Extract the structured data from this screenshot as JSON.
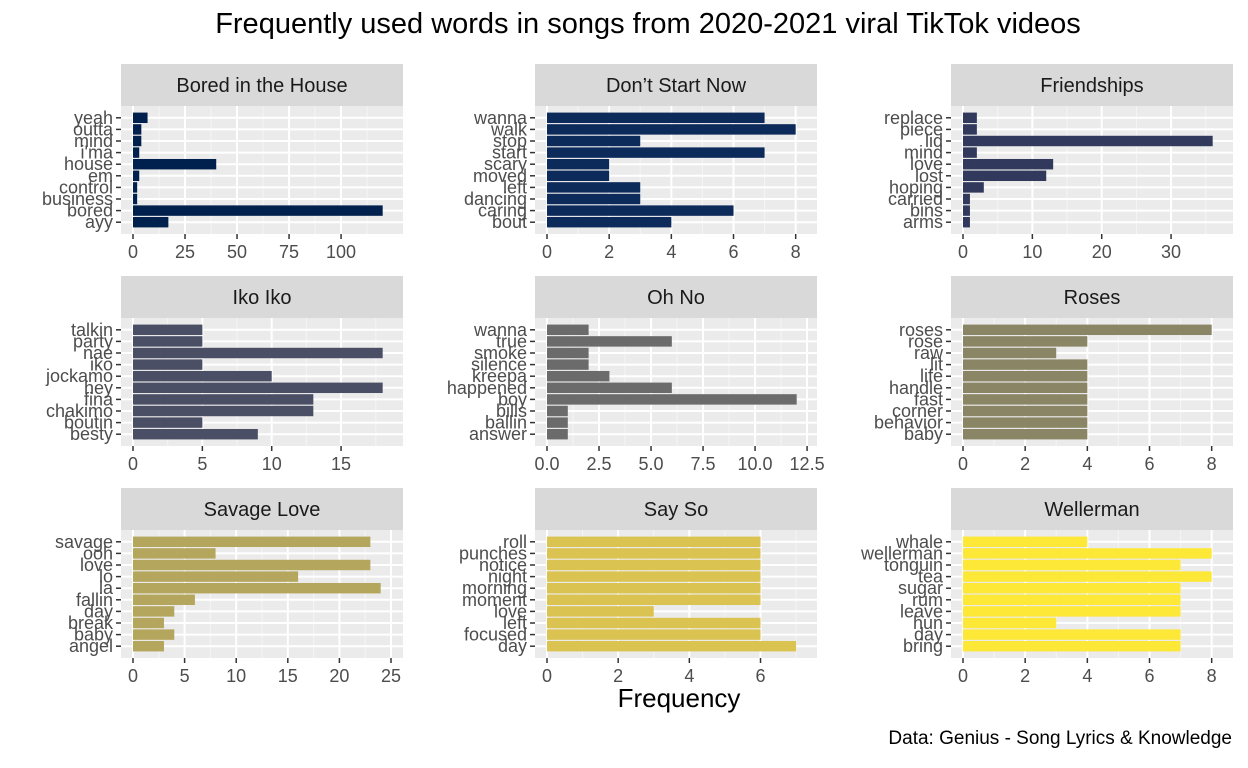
{
  "title": "Frequently used words in songs from 2020-2021 viral TikTok videos",
  "xlabel": "Frequency",
  "caption": "Data: Genius - Song Lyrics & Knowledge",
  "chart_data": {
    "type": "bar",
    "orientation": "horizontal",
    "layout": "facet-grid 3x3, free scales",
    "grid": true,
    "panels": [
      {
        "name": "Bored in the House",
        "color": "#00204d",
        "categories": [
          "yeah",
          "outta",
          "mind",
          "i'ma",
          "house",
          "em",
          "control",
          "business",
          "bored",
          "ayy"
        ],
        "values": [
          7,
          4,
          4,
          3,
          40,
          3,
          2,
          2,
          120,
          17
        ],
        "xlim": [
          0,
          124
        ],
        "xticks": [
          0,
          25,
          50,
          75,
          100
        ]
      },
      {
        "name": "Don’t Start Now",
        "color": "#0c2a5a",
        "categories": [
          "wanna",
          "walk",
          "stop",
          "start",
          "scary",
          "moved",
          "left",
          "dancing",
          "caring",
          "bout"
        ],
        "values": [
          7,
          8,
          3,
          7,
          2,
          2,
          3,
          3,
          6,
          4
        ],
        "xlim": [
          0,
          8.3
        ],
        "xticks": [
          "0",
          "2",
          "4",
          "6",
          "8"
        ]
      },
      {
        "name": "Friendships",
        "color": "#31395d",
        "categories": [
          "replace",
          "piece",
          "lid",
          "mind",
          "love",
          "lost",
          "hoping",
          "carried",
          "bins",
          "arms"
        ],
        "values": [
          2,
          2,
          36,
          2,
          13,
          12,
          3,
          1,
          1,
          1
        ],
        "xlim": [
          0,
          37.2
        ],
        "xticks": [
          "0",
          "10",
          "20",
          "30"
        ]
      },
      {
        "name": "Iko Iko",
        "color": "#4b4f66",
        "categories": [
          "talkin",
          "party",
          "nae",
          "iko",
          "jockamo",
          "hey",
          "fina",
          "chakimo",
          "boutin",
          "besty"
        ],
        "values": [
          5,
          5,
          18,
          5,
          10,
          18,
          13,
          13,
          5,
          9
        ],
        "xlim": [
          0,
          18.6
        ],
        "xticks": [
          "0",
          "5",
          "10",
          "15"
        ]
      },
      {
        "name": "Oh No",
        "color": "#6b6b6b",
        "categories": [
          "wanna",
          "true",
          "smoke",
          "silence",
          "kreepa",
          "happened",
          "boy",
          "bills",
          "ballin",
          "answer"
        ],
        "values": [
          2,
          6,
          2,
          2,
          3,
          6,
          12,
          1,
          1,
          1
        ],
        "xlim": [
          0,
          12.4
        ],
        "xticks": [
          "0.0",
          "2.5",
          "5.0",
          "7.5",
          "10.0",
          "12.5"
        ]
      },
      {
        "name": "Roses",
        "color": "#8a8565",
        "categories": [
          "roses",
          "rose",
          "raw",
          "lit",
          "life",
          "handle",
          "fast",
          "corner",
          "behavior",
          "baby"
        ],
        "values": [
          8,
          4,
          3,
          4,
          4,
          4,
          4,
          4,
          4,
          4
        ],
        "xlim": [
          0,
          8.3
        ],
        "xticks": [
          "0",
          "2",
          "4",
          "6",
          "8"
        ]
      },
      {
        "name": "Savage Love",
        "color": "#b4a65d",
        "categories": [
          "savage",
          "ooh",
          "love",
          "lo",
          "la",
          "fallin",
          "day",
          "break",
          "baby",
          "angel"
        ],
        "values": [
          23,
          8,
          23,
          16,
          24,
          6,
          4,
          3,
          4,
          3
        ],
        "xlim": [
          0,
          25
        ],
        "xticks": [
          "0",
          "5",
          "10",
          "15",
          "20",
          "25"
        ]
      },
      {
        "name": "Say So",
        "color": "#dbc351",
        "categories": [
          "roll",
          "punches",
          "notice",
          "night",
          "morning",
          "moment",
          "love",
          "left",
          "focused",
          "day"
        ],
        "values": [
          6,
          6,
          6,
          6,
          6,
          6,
          3,
          6,
          6,
          7
        ],
        "xlim": [
          0,
          7.25
        ],
        "xticks": [
          "0",
          "2",
          "4",
          "6"
        ]
      },
      {
        "name": "Wellerman",
        "color": "#fde737",
        "categories": [
          "whale",
          "wellerman",
          "tonguin",
          "tea",
          "sugar",
          "rum",
          "leave",
          "hun",
          "day",
          "bring"
        ],
        "values": [
          4,
          8,
          7,
          8,
          7,
          7,
          7,
          3,
          7,
          7
        ],
        "xlim": [
          0,
          8.3
        ],
        "xticks": [
          "0",
          "2",
          "4",
          "6",
          "8"
        ]
      }
    ]
  }
}
